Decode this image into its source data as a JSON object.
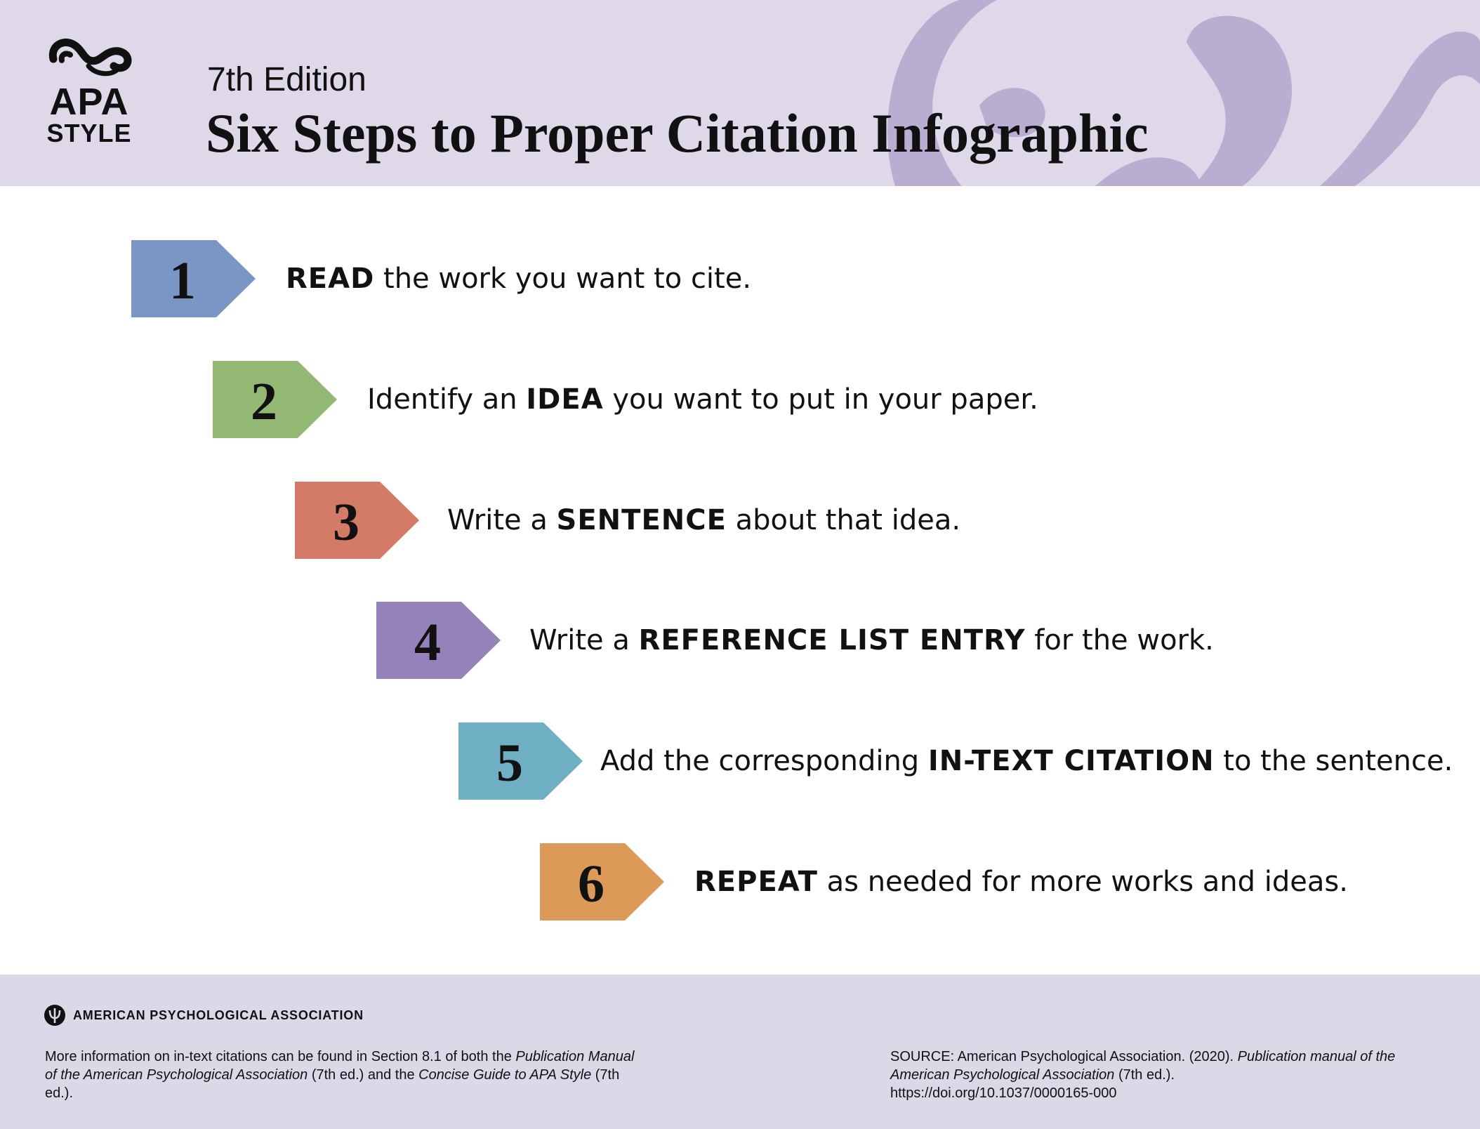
{
  "header": {
    "edition": "7th Edition",
    "title": "Six Steps to Proper Citation Infographic",
    "logo": {
      "line1": "APA",
      "line2": "STYLE"
    },
    "background_color": "#ded8e8",
    "ornament_color": "#b9aed2"
  },
  "steps": [
    {
      "number": "1",
      "color": "#7b96c4",
      "pre": "",
      "keyword": "READ",
      "post": " the work you want to cite."
    },
    {
      "number": "2",
      "color": "#93b874",
      "pre": "Identify an ",
      "keyword": "IDEA",
      "post": " you want to put in your paper."
    },
    {
      "number": "3",
      "color": "#d47b68",
      "pre": "Write a ",
      "keyword": "SENTENCE",
      "post": " about that idea."
    },
    {
      "number": "4",
      "color": "#9582ba",
      "pre": "Write a ",
      "keyword": "REFERENCE LIST ENTRY",
      "post": " for the work."
    },
    {
      "number": "5",
      "color": "#6fafc3",
      "pre": "Add the corresponding ",
      "keyword": "IN-TEXT CITATION",
      "post": " to the sentence."
    },
    {
      "number": "6",
      "color": "#dc9a58",
      "pre": "",
      "keyword": "REPEAT",
      "post": " as needed for more works and ideas."
    }
  ],
  "footer": {
    "organization": "AMERICAN PSYCHOLOGICAL ASSOCIATION",
    "note": {
      "t1": "More information on in-text citations can be found in Section 8.1 of both the ",
      "i1": "Publication Manual of the American Psychological Association",
      "t2": " (7th ed.) and the ",
      "i2": "Concise Guide to APA Style",
      "t3": " (7th ed.)."
    },
    "source": {
      "t1": "SOURCE: American Psychological Association. (2020). ",
      "i1": "Publication manual of the American Psychological Association",
      "t2": " (7th ed.).",
      "url": "https://doi.org/10.1037/0000165-000"
    }
  }
}
